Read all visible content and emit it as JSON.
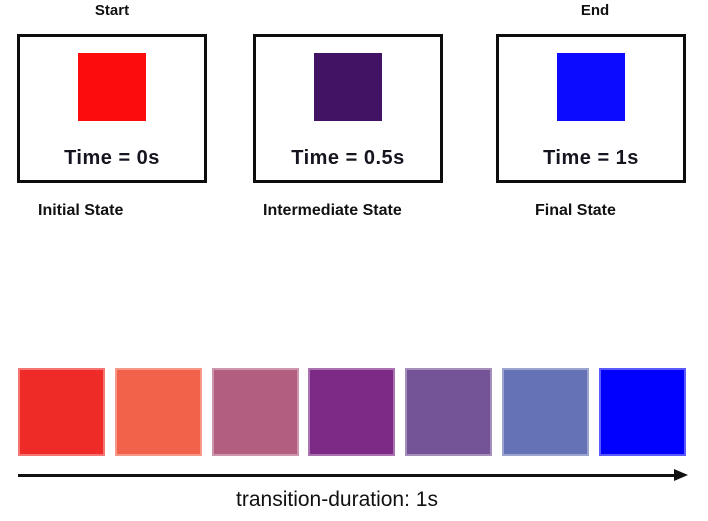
{
  "diagram": {
    "timeline": {
      "start_label": "Start",
      "end_label": "End"
    },
    "states": [
      {
        "time_label": "Time = 0s",
        "caption": "Initial State",
        "square_color": "#fc0d0b"
      },
      {
        "time_label": "Time = 0.5s",
        "caption": "Intermediate State",
        "square_color": "#421365"
      },
      {
        "time_label": "Time = 1s",
        "caption": "Final State",
        "square_color": "#0d0bff"
      }
    ],
    "gradient": {
      "swatch_colors": [
        "#ee2b26",
        "#f26149",
        "#b25e81",
        "#7c2a85",
        "#745397",
        "#6672b6",
        "#0100fe"
      ],
      "arrow_caption": "transition-duration: 1s"
    }
  }
}
